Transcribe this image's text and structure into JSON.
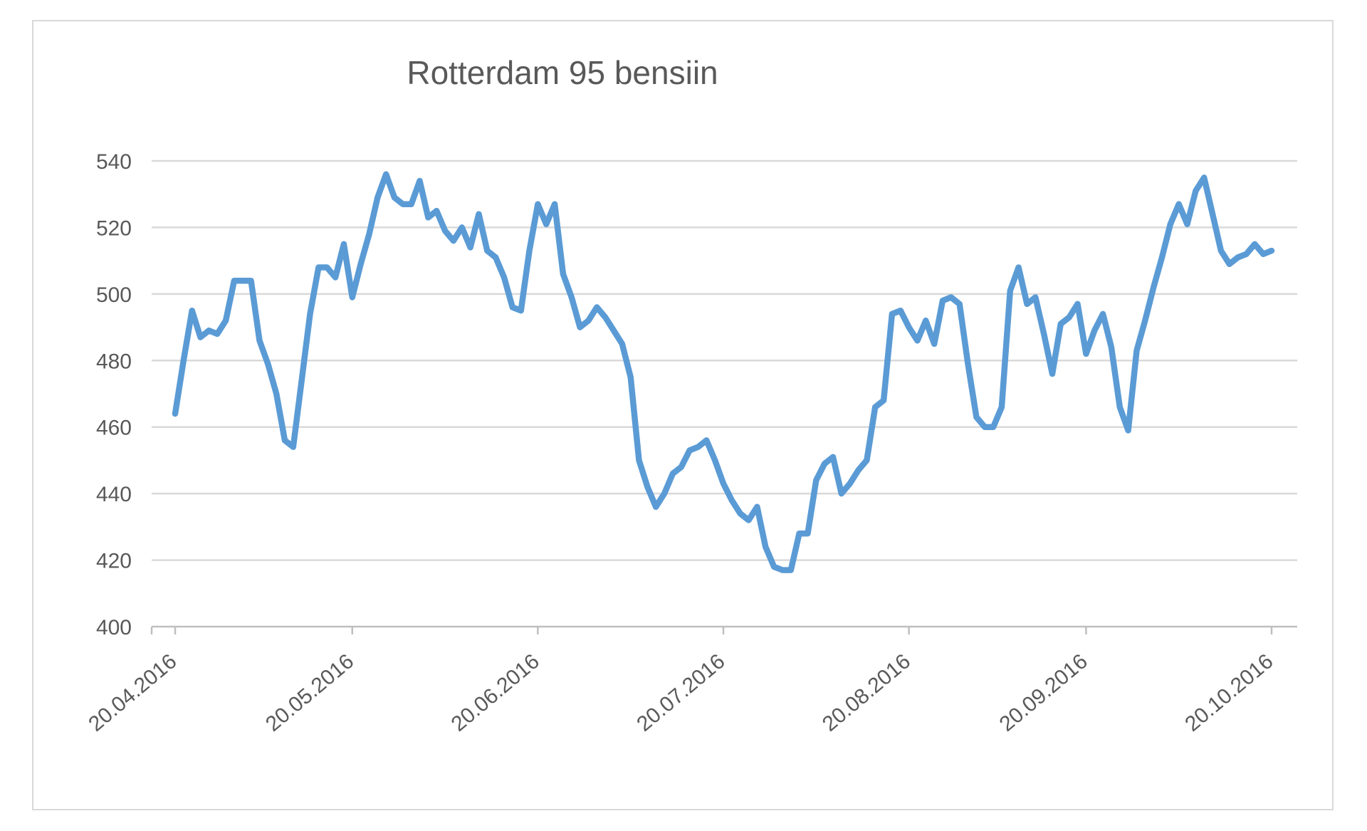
{
  "chart": {
    "title": "Rotterdam 95 bensiin"
  },
  "colors": {
    "line": "#5B9BD5",
    "gridline": "#D9D9D9",
    "axis": "#BFBFBF",
    "text": "#595959",
    "frame_border": "#D9D9D9",
    "background": "#FFFFFF"
  },
  "chart_data": {
    "type": "line",
    "title": "Rotterdam 95 bensiin",
    "xlabel": "",
    "ylabel": "",
    "ylim": [
      400,
      540
    ],
    "y_ticks": [
      400,
      420,
      440,
      460,
      480,
      500,
      520,
      540
    ],
    "grid": "horizontal",
    "legend": "none",
    "x_tick_labels": [
      "20.04.2016",
      "20.05.2016",
      "20.06.2016",
      "20.07.2016",
      "20.08.2016",
      "20.09.2016",
      "20.10.2016"
    ],
    "x_tick_indices": [
      0,
      21,
      43,
      65,
      87,
      108,
      130
    ],
    "series": [
      {
        "name": "Rotterdam 95 bensiin",
        "color": "#5B9BD5",
        "values": [
          464,
          480,
          495,
          487,
          489,
          488,
          492,
          504,
          504,
          504,
          486,
          479,
          470,
          456,
          454,
          474,
          494,
          508,
          508,
          505,
          515,
          499,
          509,
          518,
          529,
          536,
          529,
          527,
          527,
          534,
          523,
          525,
          519,
          516,
          520,
          514,
          524,
          513,
          511,
          505,
          496,
          495,
          513,
          527,
          521,
          527,
          506,
          499,
          490,
          492,
          496,
          493,
          489,
          485,
          475,
          450,
          442,
          436,
          440,
          446,
          448,
          453,
          454,
          456,
          450,
          443,
          438,
          434,
          432,
          436,
          424,
          418,
          417,
          417,
          428,
          428,
          444,
          449,
          451,
          440,
          443,
          447,
          450,
          466,
          468,
          494,
          495,
          490,
          486,
          492,
          485,
          498,
          499,
          497,
          479,
          463,
          460,
          460,
          466,
          501,
          508,
          497,
          499,
          488,
          476,
          491,
          493,
          497,
          482,
          489,
          494,
          484,
          466,
          459,
          483,
          492,
          502,
          511,
          521,
          527,
          521,
          531,
          535,
          524,
          513,
          509,
          511,
          512,
          515,
          512,
          513
        ]
      }
    ]
  }
}
